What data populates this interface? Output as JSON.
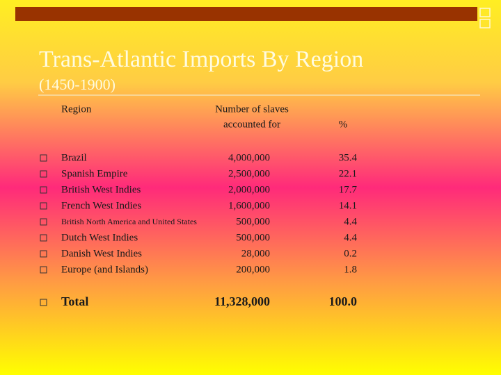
{
  "header": {
    "title": "Trans-Atlantic Imports By Region",
    "subtitle": "(1450-1900)"
  },
  "table": {
    "columns": [
      [
        "Region"
      ],
      [
        "Number of slaves",
        "accounted for"
      ],
      [
        "%"
      ]
    ],
    "rows": [
      [
        "Brazil",
        "4,000,000",
        "35.4"
      ],
      [
        "Spanish Empire",
        "2,500,000",
        "22.1"
      ],
      [
        "British West Indies",
        "2,000,000",
        "17.7"
      ],
      [
        "French West Indies",
        "1,600,000",
        "14.1"
      ],
      [
        "British North America and United States",
        "500,000",
        "4.4"
      ],
      [
        "Dutch West Indies",
        "500,000",
        "4.4"
      ],
      [
        "Danish West Indies",
        "28,000",
        "0.2"
      ],
      [
        "Europe (and Islands)",
        "200,000",
        "1.8"
      ]
    ],
    "total": [
      "Total",
      "11,328,000",
      "100.0"
    ]
  }
}
